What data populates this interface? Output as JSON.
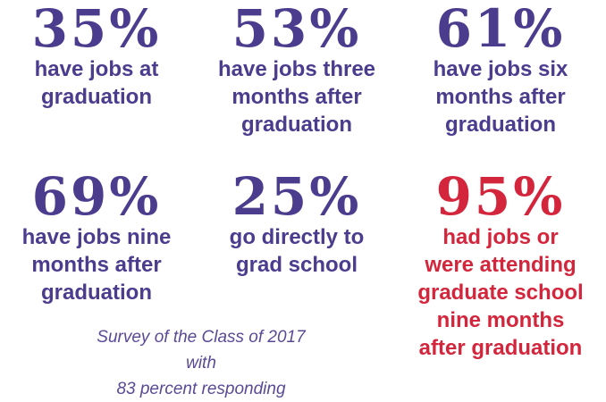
{
  "stats": [
    {
      "value": "35%",
      "lines": [
        "have jobs at",
        "graduation"
      ]
    },
    {
      "value": "53%",
      "lines": [
        "have jobs three",
        "months after",
        "graduation"
      ]
    },
    {
      "value": "61%",
      "lines": [
        "have jobs six",
        "months after",
        "graduation"
      ]
    },
    {
      "value": "69%",
      "lines": [
        "have jobs nine",
        "months after",
        "graduation"
      ]
    },
    {
      "value": "25%",
      "lines": [
        "go directly to",
        "grad school"
      ]
    },
    {
      "value": "95%",
      "lines": [
        "had jobs or",
        "were attending",
        "graduate school",
        "nine months",
        "after graduation"
      ]
    }
  ],
  "note": {
    "lines": [
      "Survey of the Class of 2017 with",
      "83 percent responding"
    ]
  }
}
